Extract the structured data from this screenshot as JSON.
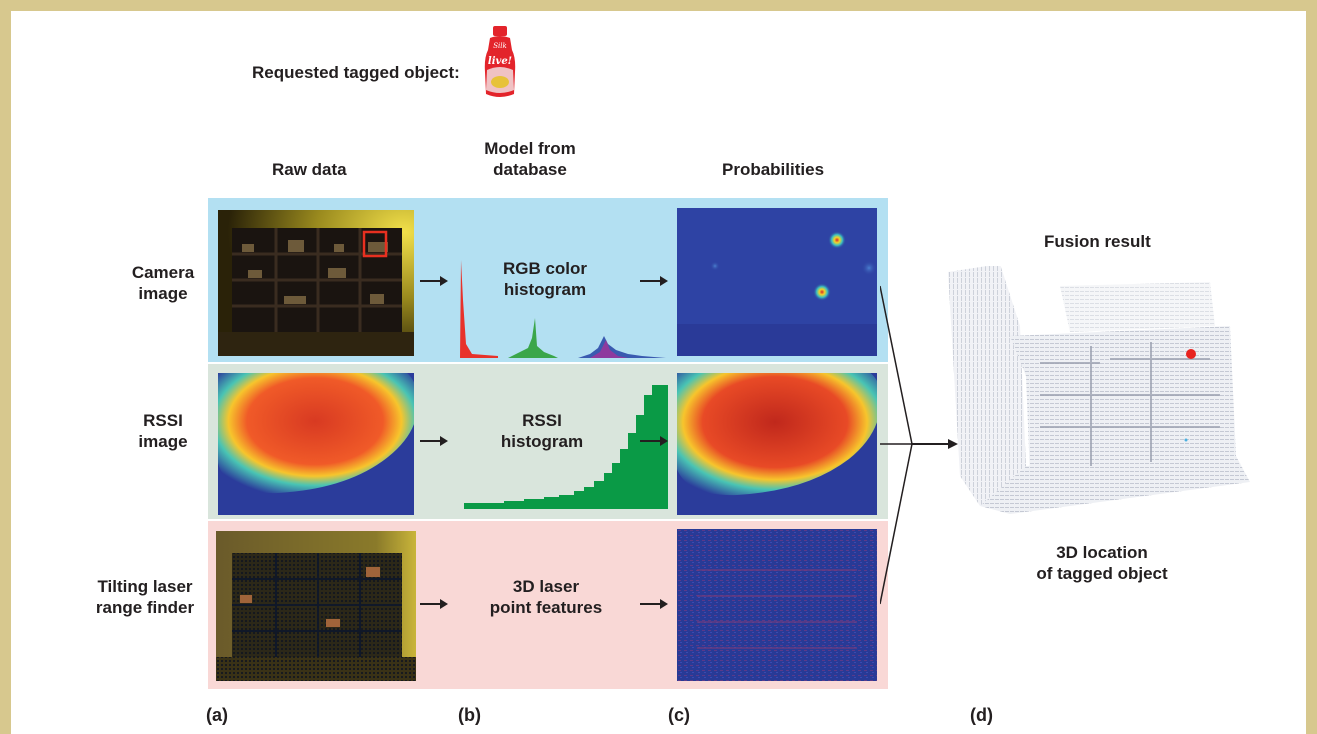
{
  "header": {
    "requested_label": "Requested tagged object:",
    "bottle_brand": "Silk",
    "bottle_product": "live!"
  },
  "columns": {
    "raw": "Raw data",
    "model_line1": "Model from",
    "model_line2": "database",
    "prob": "Probabilities"
  },
  "rows": {
    "camera_line1": "Camera",
    "camera_line2": "image",
    "rssi_line1": "RSSI",
    "rssi_line2": "image",
    "laser_line1": "Tilting laser",
    "laser_line2": "range finder"
  },
  "models": {
    "rgb_line1": "RGB color",
    "rgb_line2": "histogram",
    "rssi_line1": "RSSI",
    "rssi_line2": "histogram",
    "laser_line1": "3D laser",
    "laser_line2": "point features"
  },
  "fusion": {
    "title": "Fusion result",
    "loc_line1": "3D location",
    "loc_line2": "of tagged object"
  },
  "panel_labels": {
    "a": "(a)",
    "b": "(b)",
    "c": "(c)",
    "d": "(d)"
  },
  "colors": {
    "border": "#d7c88e",
    "camera_band": "#b3e0f2",
    "rssi_band": "#d9e5dc",
    "laser_band": "#f9d8d6"
  }
}
